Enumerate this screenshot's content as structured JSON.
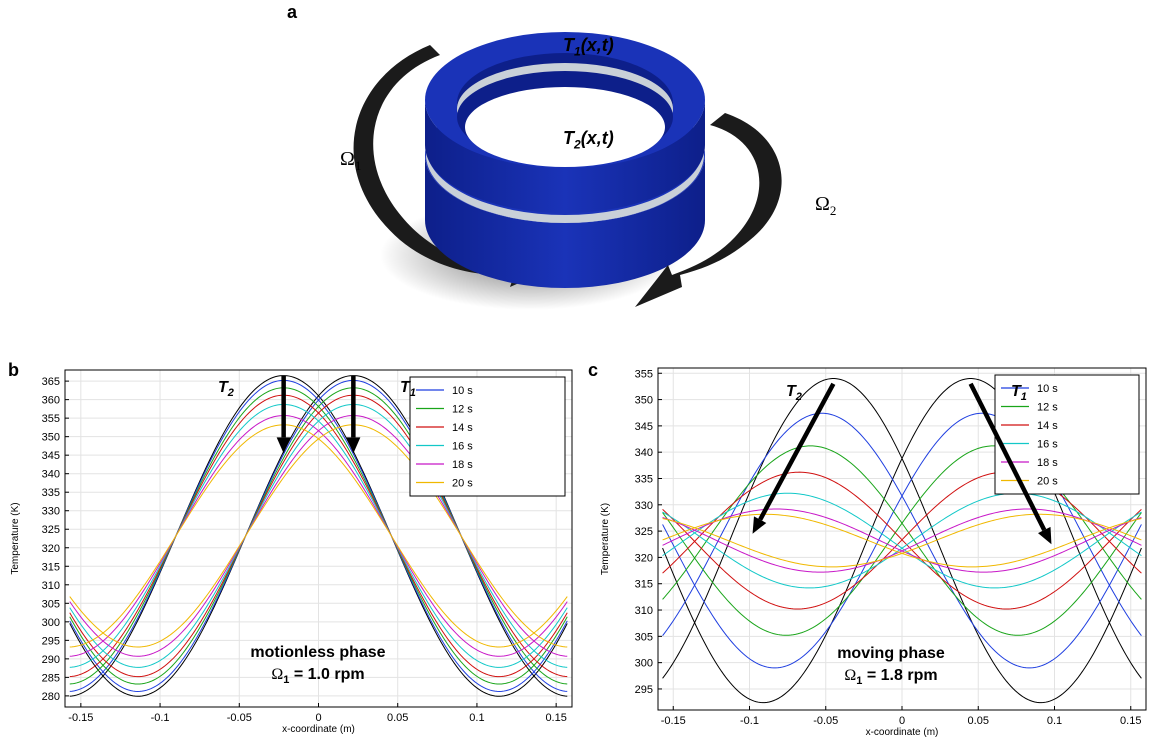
{
  "figure": {
    "panel_a": "a",
    "panel_b": "b",
    "panel_c": "c",
    "ring_labels": {
      "t1": {
        "sym": "T",
        "sub": "1",
        "args": "(x,t)"
      },
      "t2": {
        "sym": "T",
        "sub": "2",
        "args": "(x,t)"
      }
    },
    "omega_labels": {
      "o1": {
        "sym": "Ω",
        "sub": "1"
      },
      "o2": {
        "sym": "Ω",
        "sub": "2"
      }
    },
    "colors": {
      "ring": "#1a33b8",
      "ring_dark": "#0d1f8a",
      "gap": "#c9d0d8",
      "arrow": "#1b1b1b"
    }
  },
  "chart_data": [
    {
      "type": "line",
      "panel": "b",
      "xlabel": "x-coordinate (m)",
      "ylabel": "Temperature (K)",
      "xlim": [
        -0.16,
        0.16
      ],
      "ylim": [
        277,
        368
      ],
      "xticks": [
        -0.15,
        -0.1,
        -0.05,
        0,
        0.05,
        0.1,
        0.15
      ],
      "xtick_labels": [
        "-0.15",
        "-0.1",
        "-0.05",
        "0",
        "0.05",
        "0.1",
        "0.15"
      ],
      "yticks": [
        280,
        285,
        290,
        295,
        300,
        305,
        310,
        315,
        320,
        325,
        330,
        335,
        340,
        345,
        350,
        355,
        360,
        365
      ],
      "grid": true,
      "legend_position": "top-right",
      "legend": [
        "10 s",
        "12 s",
        "14 s",
        "16 s",
        "18 s",
        "20 s"
      ],
      "series_colors": [
        "#1f3fe0",
        "#1aa51a",
        "#d01010",
        "#12c8c8",
        "#c818c8",
        "#f0b800"
      ],
      "initial_color": "#000000",
      "curve_labels": [
        {
          "sym": "T",
          "sub": "2"
        },
        {
          "sym": "T",
          "sub": "1"
        }
      ],
      "annotation_lines": [
        "motionless phase",
        "Ω",
        "1",
        " = 1.0 rpm"
      ],
      "model": {
        "x_min": -0.157,
        "x_max": 0.157,
        "wavenumber": 23.1,
        "mean": 323.2,
        "t2_peak_x": -0.022,
        "t1_peak_x": 0.022,
        "initial_amplitude": 43.3,
        "amplitudes": [
          42,
          40,
          38,
          35.5,
          32.5,
          30
        ],
        "amplitude_drift": 0
      },
      "arrows": [
        {
          "from": [
            -0.022,
            366.5
          ],
          "to": [
            -0.022,
            345.5
          ]
        },
        {
          "from": [
            0.022,
            366.5
          ],
          "to": [
            0.022,
            345.5
          ]
        }
      ]
    },
    {
      "type": "line",
      "panel": "c",
      "xlabel": "x-coordinate (m)",
      "ylabel": "Temperature (K)",
      "xlim": [
        -0.16,
        0.16
      ],
      "ylim": [
        291,
        356
      ],
      "xticks": [
        -0.15,
        -0.1,
        -0.05,
        0,
        0.05,
        0.1,
        0.15
      ],
      "xtick_labels": [
        "-0.15",
        "-0.1",
        "-0.05",
        "0",
        "0.05",
        "0.1",
        "0.15"
      ],
      "yticks": [
        295,
        300,
        305,
        310,
        315,
        320,
        325,
        330,
        335,
        340,
        345,
        350,
        355
      ],
      "grid": true,
      "legend_position": "top-right",
      "legend": [
        "10 s",
        "12 s",
        "14 s",
        "16 s",
        "18 s",
        "20 s"
      ],
      "series_colors": [
        "#1f3fe0",
        "#1aa51a",
        "#d01010",
        "#12c8c8",
        "#c818c8",
        "#f0b800"
      ],
      "initial_color": "#000000",
      "curve_labels": [
        {
          "sym": "T",
          "sub": "2"
        },
        {
          "sym": "T",
          "sub": "1"
        }
      ],
      "annotation_lines": [
        "moving phase",
        "Ω",
        "1",
        " = 1.8 rpm"
      ],
      "model": {
        "x_min": -0.157,
        "x_max": 0.157,
        "wavenumber": 23.1,
        "mean": 323.2,
        "t2_peak_x": -0.045,
        "t1_peak_x": 0.045,
        "initial_amplitude": 30.8,
        "amplitudes": [
          24.2,
          18,
          13,
          9,
          6,
          5
        ],
        "phase_shift_per_step": 0.0075
      },
      "arrows": [
        {
          "from": [
            -0.045,
            353
          ],
          "to": [
            -0.098,
            324.5
          ]
        },
        {
          "from": [
            0.045,
            353
          ],
          "to": [
            0.098,
            322.5
          ]
        }
      ]
    }
  ]
}
